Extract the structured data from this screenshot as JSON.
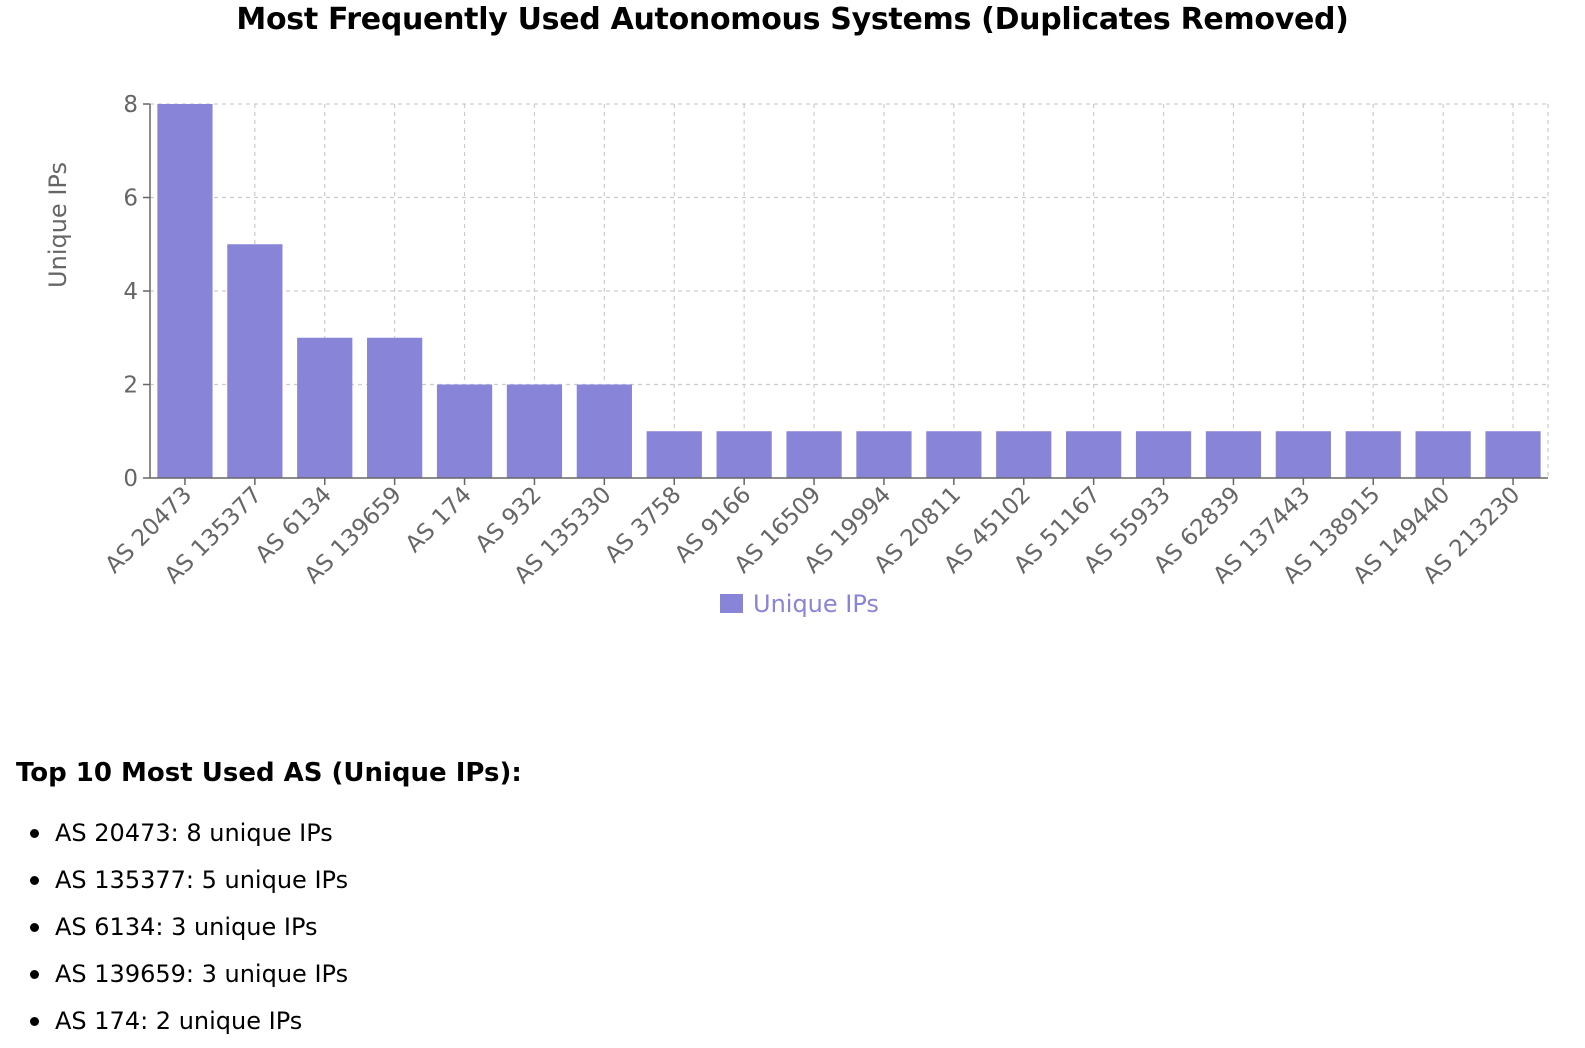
{
  "chart_data": {
    "type": "bar",
    "title": "Most Frequently Used Autonomous Systems (Duplicates Removed)",
    "xlabel": "",
    "ylabel": "Unique IPs",
    "categories": [
      "AS 20473",
      "AS 135377",
      "AS 6134",
      "AS 139659",
      "AS 174",
      "AS 932",
      "AS 135330",
      "AS 3758",
      "AS 9166",
      "AS 16509",
      "AS 19994",
      "AS 20811",
      "AS 45102",
      "AS 51167",
      "AS 55933",
      "AS 62839",
      "AS 137443",
      "AS 138915",
      "AS 149440",
      "AS 213230"
    ],
    "series": [
      {
        "name": "Unique IPs",
        "values": [
          8,
          5,
          3,
          3,
          2,
          2,
          2,
          1,
          1,
          1,
          1,
          1,
          1,
          1,
          1,
          1,
          1,
          1,
          1,
          1
        ],
        "color": "#8884d8"
      }
    ],
    "ylim": [
      0,
      8
    ],
    "yticks": [
      "0",
      "2",
      "4",
      "6",
      "8"
    ],
    "grid": true,
    "legend": "bottom-center"
  },
  "summary": {
    "heading": "Top 10 Most Used AS (Unique IPs):",
    "items": [
      "AS 20473: 8 unique IPs",
      "AS 135377: 5 unique IPs",
      "AS 6134: 3 unique IPs",
      "AS 139659: 3 unique IPs",
      "AS 174: 2 unique IPs"
    ]
  }
}
